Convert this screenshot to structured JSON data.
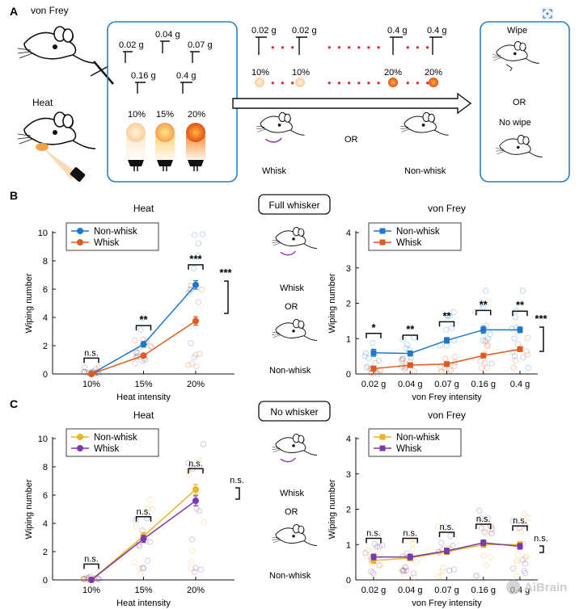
{
  "panels": {
    "a": "A",
    "b": "B",
    "c": "C"
  },
  "panel_a": {
    "stim_vonfrey": "von Frey",
    "stim_heat": "Heat",
    "filament_labels": [
      "0.02 g",
      "0.04 g",
      "0.07 g",
      "0.16 g",
      "0.4 g"
    ],
    "heat_pcts": [
      "10%",
      "15%",
      "20%"
    ],
    "seq_filaments": [
      "0.02 g",
      "0.02 g",
      "0.4 g",
      "0.4 g"
    ],
    "seq_heat": [
      "10%",
      "10%",
      "20%",
      "20%"
    ],
    "whisk": "Whisk",
    "or_mid": "OR",
    "non_whisk": "Non-whisk",
    "result_wipe": "Wipe",
    "result_or": "OR",
    "result_no_wipe": "No wipe"
  },
  "panel_b": {
    "banner": "Full whisker",
    "mid_whisk": "Whisk",
    "mid_or": "OR",
    "mid_non_whisk": "Non-whisk"
  },
  "panel_c": {
    "banner": "No whisker",
    "mid_whisk": "Whisk",
    "mid_or": "OR",
    "mid_non_whisk": "Non-whisk"
  },
  "watermark": "AiBrain",
  "colors": {
    "blue": "#1f77c8",
    "orange": "#de5a20",
    "yellow": "#e8b42a",
    "purple": "#7a3aa8",
    "frame": "#2a7fc0"
  },
  "chart_data": [
    {
      "id": "b_heat",
      "type": "line",
      "title": "Heat",
      "xlabel": "Heat intensity",
      "ylabel": "Wiping number",
      "categories": [
        "10%",
        "15%",
        "20%"
      ],
      "ylim": [
        0,
        10
      ],
      "yticks": [
        0,
        2,
        4,
        6,
        8,
        10
      ],
      "series": [
        {
          "name": "Non-whisk",
          "color": "#1f77c8",
          "marker": "circle",
          "values": [
            0,
            2.1,
            6.3
          ],
          "err": [
            0,
            0.2,
            0.3
          ]
        },
        {
          "name": "Whisk",
          "color": "#de5a20",
          "marker": "circle",
          "values": [
            0,
            1.3,
            3.75
          ],
          "err": [
            0,
            0.15,
            0.3
          ]
        }
      ],
      "sig": [
        "n.s.",
        "**",
        "***"
      ],
      "sig_overall": "***"
    },
    {
      "id": "b_vf",
      "type": "line",
      "title": "von Frey",
      "xlabel": "von Frey intensity",
      "ylabel": "Wiping number",
      "categories": [
        "0.02 g",
        "0.04 g",
        "0.07 g",
        "0.16 g",
        "0.4 g"
      ],
      "ylim": [
        0,
        4
      ],
      "yticks": [
        0,
        1,
        2,
        3,
        4
      ],
      "series": [
        {
          "name": "Non-whisk",
          "color": "#1f77c8",
          "marker": "square",
          "values": [
            0.6,
            0.58,
            0.95,
            1.25,
            1.25
          ],
          "err": [
            0.1,
            0.07,
            0.08,
            0.1,
            0.08
          ]
        },
        {
          "name": "Whisk",
          "color": "#de5a20",
          "marker": "square",
          "values": [
            0.15,
            0.25,
            0.28,
            0.52,
            0.7
          ],
          "err": [
            0.03,
            0.04,
            0.04,
            0.05,
            0.06
          ]
        }
      ],
      "sig": [
        "*",
        "**",
        "**",
        "**",
        "**"
      ],
      "sig_overall": "***"
    },
    {
      "id": "c_heat",
      "type": "line",
      "title": "Heat",
      "xlabel": "Heat intensity",
      "ylabel": "Wiping number",
      "categories": [
        "10%",
        "15%",
        "20%"
      ],
      "ylim": [
        0,
        10
      ],
      "yticks": [
        0,
        2,
        4,
        6,
        8,
        10
      ],
      "series": [
        {
          "name": "Non-whisk",
          "color": "#e8b42a",
          "marker": "circle",
          "values": [
            0,
            3.1,
            6.4
          ],
          "err": [
            0,
            0.25,
            0.35
          ]
        },
        {
          "name": "Whisk",
          "color": "#7a3aa8",
          "marker": "circle",
          "values": [
            0,
            2.9,
            5.6
          ],
          "err": [
            0,
            0.25,
            0.35
          ]
        }
      ],
      "sig": [
        "n.s.",
        "n.s.",
        "n.s."
      ],
      "sig_overall": "n.s."
    },
    {
      "id": "c_vf",
      "type": "line",
      "title": "von Frey",
      "xlabel": "von Frey intensity",
      "ylabel": "Wiping number",
      "categories": [
        "0.02 g",
        "0.04 g",
        "0.07 g",
        "0.16 g",
        "0.4 g"
      ],
      "ylim": [
        0,
        4
      ],
      "yticks": [
        0,
        1,
        2,
        3,
        4
      ],
      "series": [
        {
          "name": "Non-whisk",
          "color": "#e8b42a",
          "marker": "square",
          "values": [
            0.55,
            0.62,
            0.8,
            1.0,
            1.0
          ],
          "err": [
            0.08,
            0.08,
            0.08,
            0.08,
            0.08
          ]
        },
        {
          "name": "Whisk",
          "color": "#7a3aa8",
          "marker": "square",
          "values": [
            0.65,
            0.65,
            0.82,
            1.05,
            0.95
          ],
          "err": [
            0.08,
            0.08,
            0.08,
            0.08,
            0.08
          ]
        }
      ],
      "sig": [
        "n.s.",
        "n.s.",
        "n.s.",
        "n.s.",
        "n.s."
      ],
      "sig_overall": "n.s."
    }
  ]
}
